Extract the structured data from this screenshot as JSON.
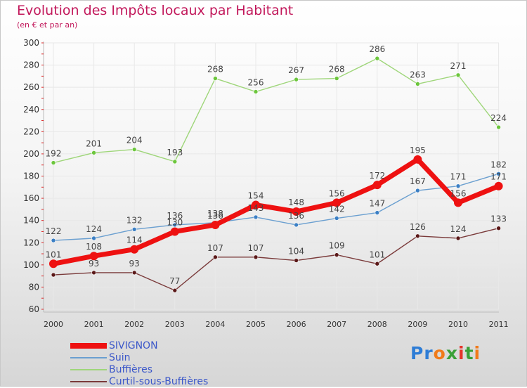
{
  "title": "Evolution des Impôts locaux par Habitant",
  "subtitle": "(en € et par an)",
  "logo_text": "Proxiti",
  "colors": {
    "title": "#c2185b",
    "legend_text": "#3b57c9"
  },
  "chart_data": {
    "type": "line",
    "title": "Evolution des Impôts locaux par Habitant",
    "subtitle": "(en € et par an)",
    "xlabel": "",
    "ylabel": "",
    "categories": [
      "2000",
      "2001",
      "2002",
      "2003",
      "2004",
      "2005",
      "2006",
      "2007",
      "2008",
      "2009",
      "2010",
      "2011"
    ],
    "ylim": [
      60,
      300
    ],
    "yticks": [
      60,
      80,
      100,
      120,
      140,
      160,
      180,
      200,
      220,
      240,
      260,
      280,
      300
    ],
    "legend_position": "bottom-left",
    "series": [
      {
        "name": "SIVIGNON",
        "color": "#ee1111",
        "marker": "#ee1111",
        "bold": true,
        "values": [
          101,
          108,
          114,
          130,
          136,
          154,
          148,
          156,
          172,
          195,
          156,
          171
        ],
        "labels": [
          "101",
          "108",
          "114",
          "130",
          "136",
          "154",
          "148",
          "156",
          "172",
          "195",
          "156",
          "171"
        ]
      },
      {
        "name": "Suin",
        "color": "#6a9fd0",
        "marker": "#3b7fc4",
        "bold": false,
        "values": [
          122,
          124,
          132,
          136,
          138,
          143,
          136,
          142,
          147,
          167,
          171,
          182
        ],
        "labels": [
          "122",
          "124",
          "132",
          "136",
          "138",
          "143",
          "136",
          "142",
          "147",
          "167",
          "171",
          "182"
        ]
      },
      {
        "name": "Buffières",
        "color": "#9fd67a",
        "marker": "#6cc63c",
        "bold": false,
        "values": [
          192,
          201,
          204,
          193,
          268,
          256,
          267,
          268,
          286,
          263,
          271,
          224
        ],
        "labels": [
          "192",
          "201",
          "204",
          "193",
          "268",
          "256",
          "267",
          "268",
          "286",
          "263",
          "271",
          "224"
        ]
      },
      {
        "name": "Curtil-sous-Buffières",
        "color": "#7a3a3a",
        "marker": "#5a1818",
        "bold": false,
        "values": [
          91,
          93,
          93,
          77,
          107,
          107,
          104,
          109,
          101,
          126,
          124,
          133
        ],
        "labels": [
          "",
          "93",
          "93",
          "77",
          "107",
          "107",
          "104",
          "109",
          "101",
          "126",
          "124",
          "133"
        ]
      }
    ]
  }
}
